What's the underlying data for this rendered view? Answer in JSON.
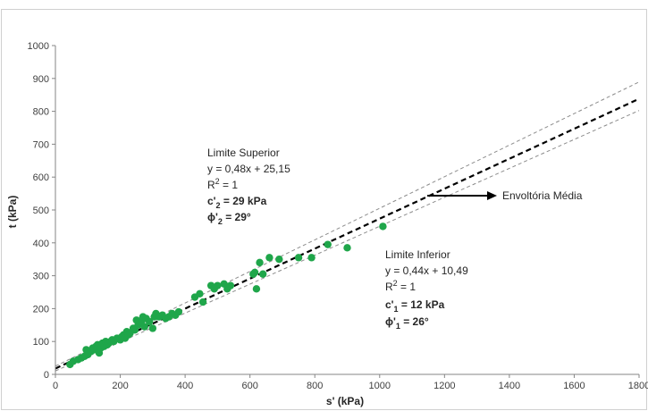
{
  "chart_data": {
    "type": "scatter",
    "xlabel": "s' (kPa)",
    "ylabel": "t (kPa)",
    "xlim": [
      0,
      1800
    ],
    "ylim": [
      0,
      1000
    ],
    "x_ticks": [
      "0",
      "200",
      "400",
      "600",
      "800",
      "1000",
      "1200",
      "1400",
      "1600",
      "1800"
    ],
    "y_ticks": [
      "0",
      "100",
      "200",
      "300",
      "400",
      "500",
      "600",
      "700",
      "800",
      "900",
      "1000"
    ],
    "grid": "none",
    "colors": {
      "points": "#1fa64a",
      "mean_line": "#000000",
      "limit_lines": "#8c8c8c"
    },
    "series": [
      {
        "kind": "points",
        "x": [
          45,
          55,
          70,
          80,
          90,
          95,
          100,
          110,
          115,
          120,
          125,
          130,
          135,
          140,
          145,
          150,
          155,
          160,
          165,
          170,
          175,
          180,
          190,
          200,
          205,
          210,
          215,
          220,
          225,
          230,
          240,
          245,
          250,
          255,
          260,
          265,
          270,
          275,
          280,
          290,
          300,
          305,
          310,
          320,
          330,
          340,
          350,
          360,
          370,
          380,
          430,
          445,
          455,
          480,
          490,
          500,
          520,
          530,
          540,
          610,
          615,
          620,
          630,
          640,
          660,
          690,
          750,
          790,
          840,
          900,
          1010
        ],
        "y": [
          30,
          40,
          45,
          50,
          55,
          75,
          60,
          70,
          80,
          75,
          85,
          90,
          65,
          80,
          95,
          85,
          100,
          90,
          95,
          100,
          105,
          100,
          110,
          105,
          115,
          120,
          110,
          130,
          120,
          125,
          140,
          135,
          165,
          150,
          155,
          160,
          175,
          145,
          170,
          160,
          140,
          175,
          185,
          175,
          180,
          170,
          175,
          185,
          180,
          190,
          235,
          245,
          220,
          270,
          260,
          270,
          275,
          260,
          270,
          305,
          310,
          260,
          340,
          305,
          355,
          350,
          355,
          355,
          395,
          385,
          450
        ]
      },
      {
        "kind": "line",
        "style": "dashed-bold",
        "x": [
          0,
          1800
        ],
        "y": [
          17.8,
          838
        ]
      },
      {
        "kind": "line",
        "style": "dashed-thin",
        "x": [
          0,
          1800
        ],
        "y": [
          25.15,
          889.15
        ]
      },
      {
        "kind": "line",
        "style": "dashed-thin",
        "x": [
          0,
          1800
        ],
        "y": [
          10.49,
          802.49
        ]
      }
    ],
    "annotations": {
      "upper": {
        "l1": "Limite Superior",
        "l2": "y = 0,48x + 25,15",
        "l3_a": "R",
        "l3_sup": "2",
        "l3_b": " = 1",
        "l4_a": "c'",
        "l4_sub": "2",
        "l4_b": " = 29 kPa",
        "l5_a": "ϕ'",
        "l5_sub": "2",
        "l5_b": " = 29°"
      },
      "lower": {
        "l1": "Limite Inferior",
        "l2": "y = 0,44x + 10,49",
        "l3_a": "R",
        "l3_sup": "2",
        "l3_b": " = 1",
        "l4_a": "c'",
        "l4_sub": "1",
        "l4_b": " = 12 kPa",
        "l5_a": "ϕ'",
        "l5_sub": "1",
        "l5_b": " = 26°"
      },
      "mean": {
        "label": "Envoltória Média"
      }
    }
  }
}
